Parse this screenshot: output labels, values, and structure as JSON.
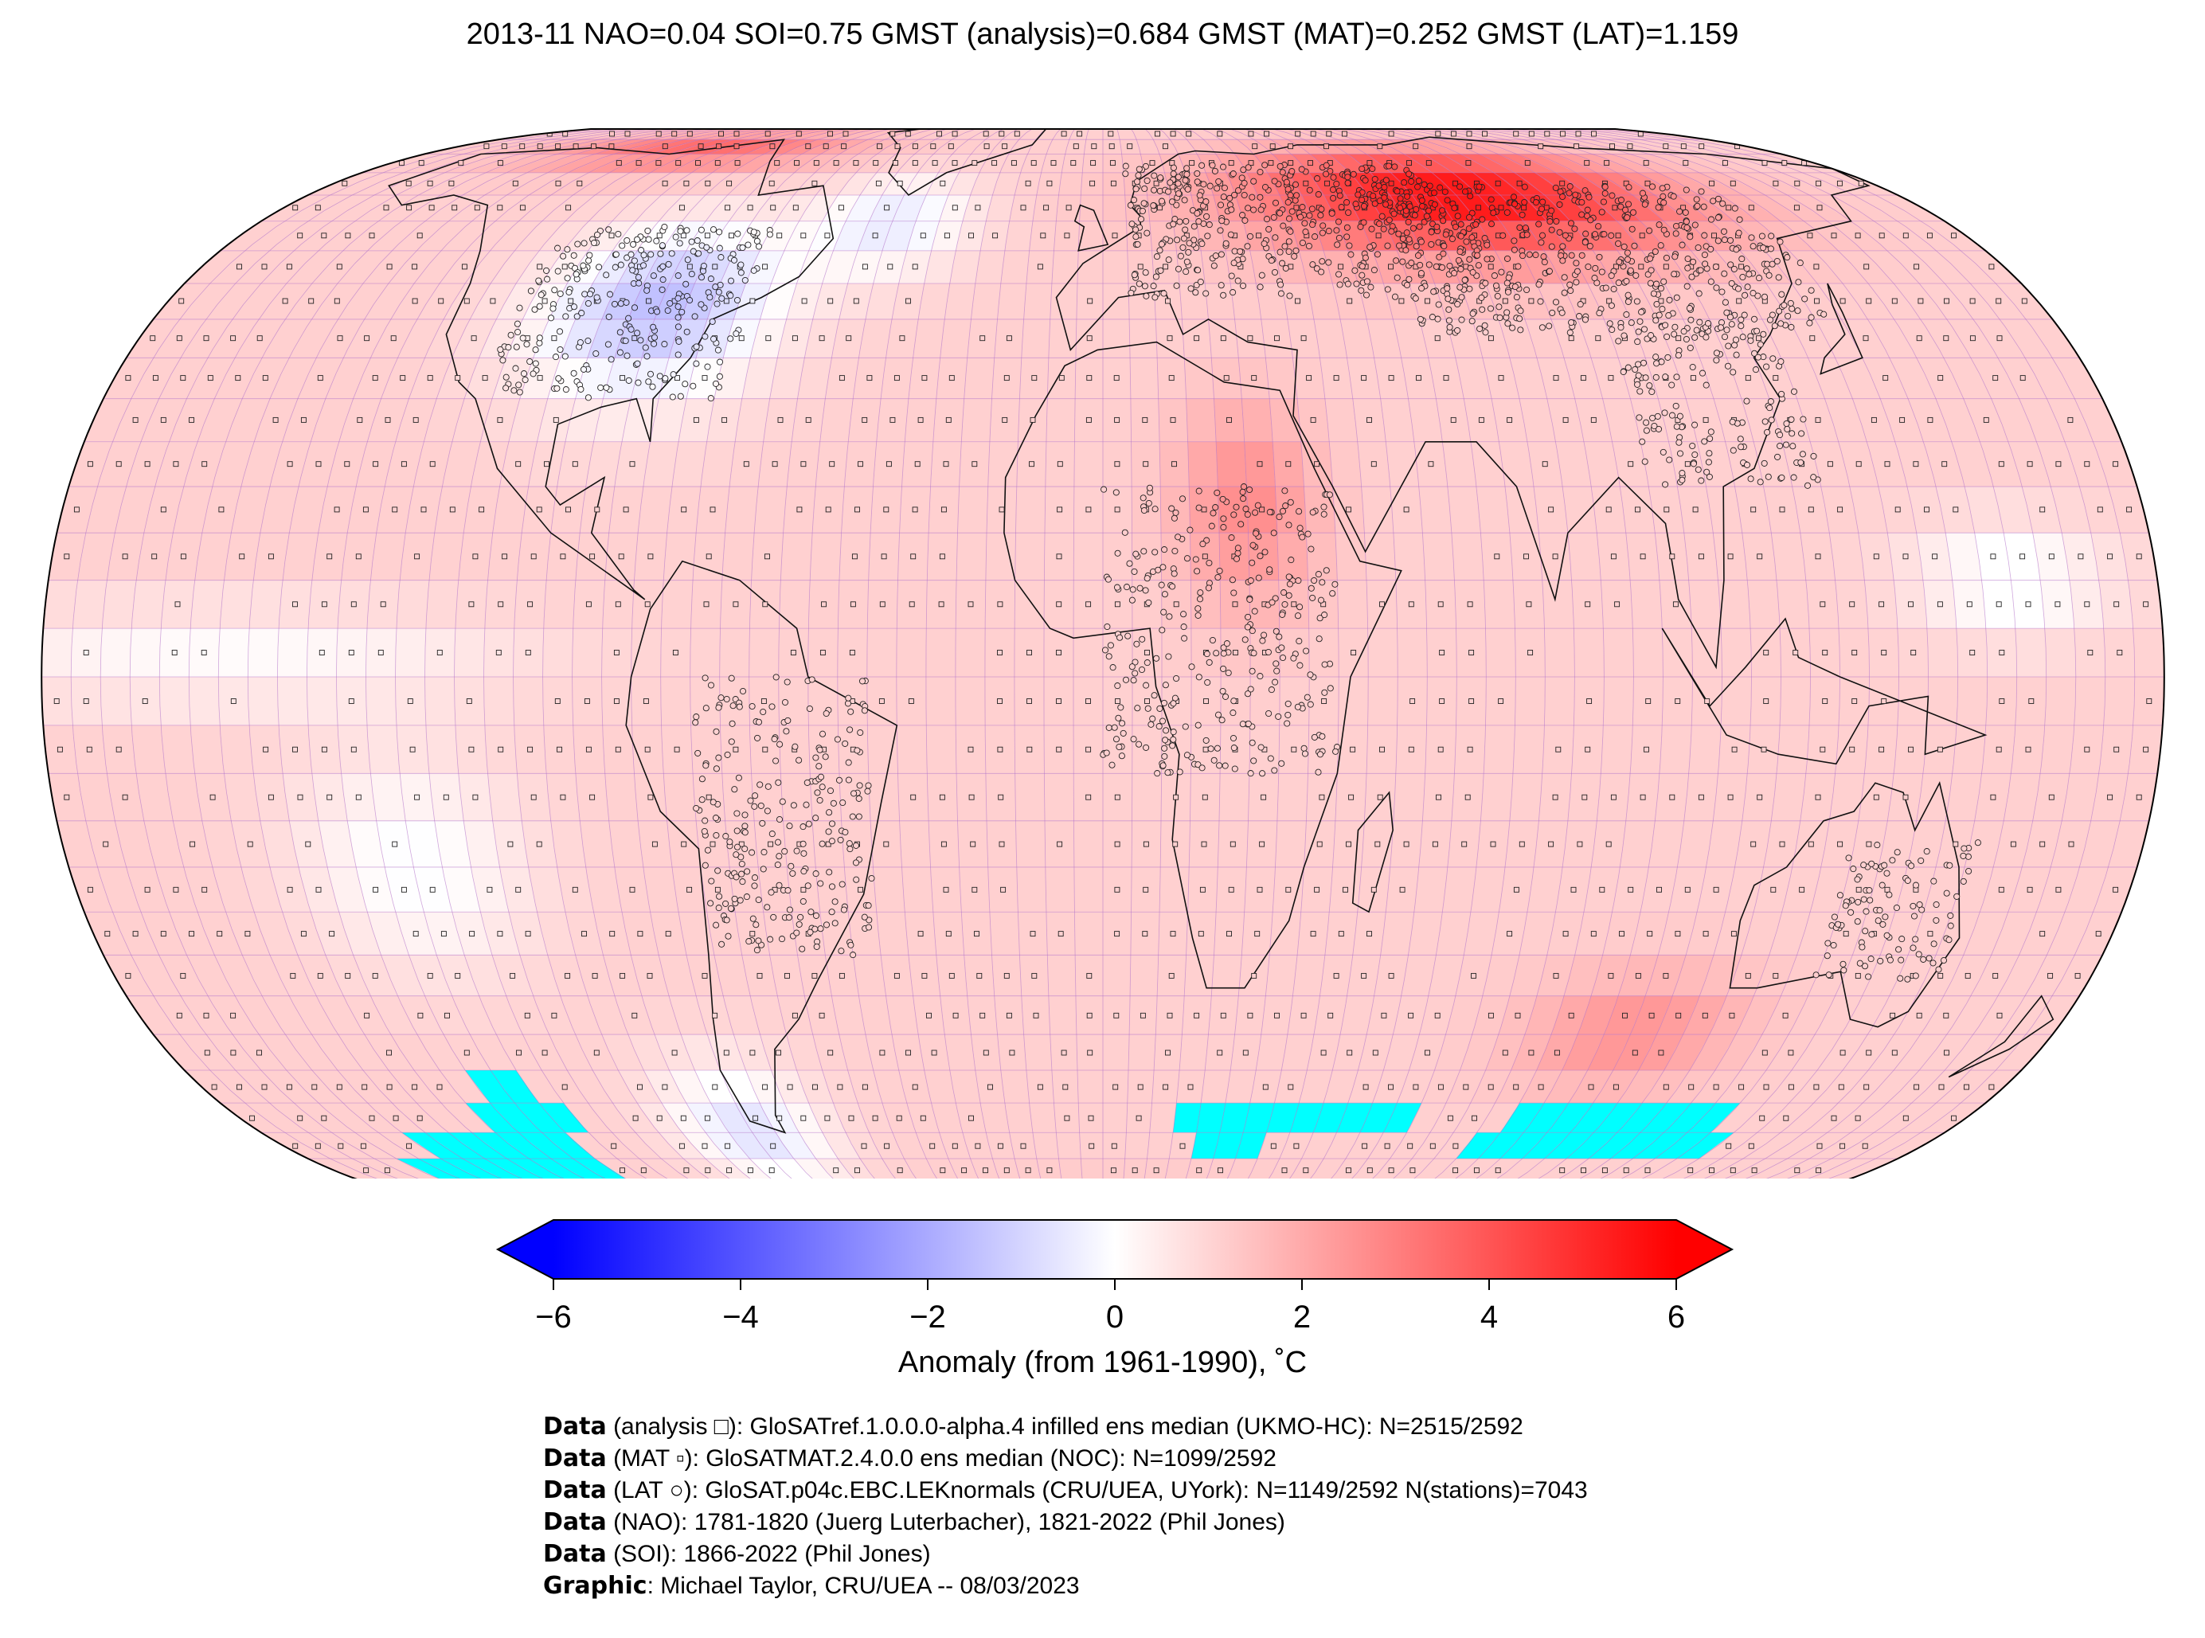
{
  "title": "2013-11 NAO=0.04 SOI=0.75 GMST (analysis)=0.684 GMST (MAT)=0.252 GMST (LAT)=1.159",
  "colorbar": {
    "label": "Anomaly (from 1961-1990), ˚C",
    "ticks": [
      "−6",
      "−4",
      "−2",
      "0",
      "2",
      "4",
      "6"
    ],
    "range": [
      -6,
      6
    ],
    "colors": {
      "low": "#0000ff",
      "mid": "#ffffff",
      "high": "#ff0000"
    }
  },
  "map": {
    "projection": "Robinson",
    "missing_color": "#00ffff",
    "grid_color": "#b070c8"
  },
  "credits": [
    {
      "bold": "Data",
      "text": " (analysis □): GloSATref.1.0.0.0-alpha.4 infilled ens median (UKMO-HC): N=2515/2592"
    },
    {
      "bold": "Data",
      "text": " (MAT ▫): GloSATMAT.2.4.0.0 ens median (NOC): N=1099/2592"
    },
    {
      "bold": "Data",
      "text": " (LAT ○): GloSAT.p04c.EBC.LEKnormals (CRU/UEA, UYork): N=1149/2592 N(stations)=7043"
    },
    {
      "bold": "Data",
      "text": " (NAO): 1781-1820 (Juerg Luterbacher), 1821-2022 (Phil Jones)"
    },
    {
      "bold": "Data",
      "text": " (SOI): 1866-2022 (Phil Jones)"
    },
    {
      "bold": "Graphic",
      "text": ": Michael Taylor, CRU/UEA -- 08/03/2023"
    }
  ]
}
